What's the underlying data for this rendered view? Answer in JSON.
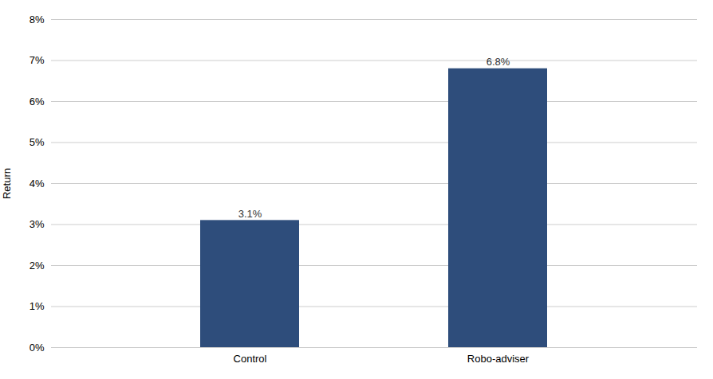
{
  "chart_data": {
    "type": "bar",
    "categories": [
      "Control",
      "Robo-adviser"
    ],
    "values": [
      0.031,
      0.068
    ],
    "value_labels": [
      "3.1%",
      "6.8%"
    ],
    "data_labels": true,
    "color": "#2E4D7B",
    "ylabel": "Return",
    "ylim": [
      0,
      0.08
    ],
    "yticks": [
      {
        "value": 0,
        "label": "0%"
      },
      {
        "value": 0.01,
        "label": "1%"
      },
      {
        "value": 0.02,
        "label": "2%"
      },
      {
        "value": 0.03,
        "label": "3%"
      },
      {
        "value": 0.04,
        "label": "4%"
      },
      {
        "value": 0.05,
        "label": "5%"
      },
      {
        "value": 0.06,
        "label": "6%"
      },
      {
        "value": 0.07,
        "label": "7%"
      },
      {
        "value": 0.08,
        "label": "8%"
      }
    ],
    "grid": true
  }
}
